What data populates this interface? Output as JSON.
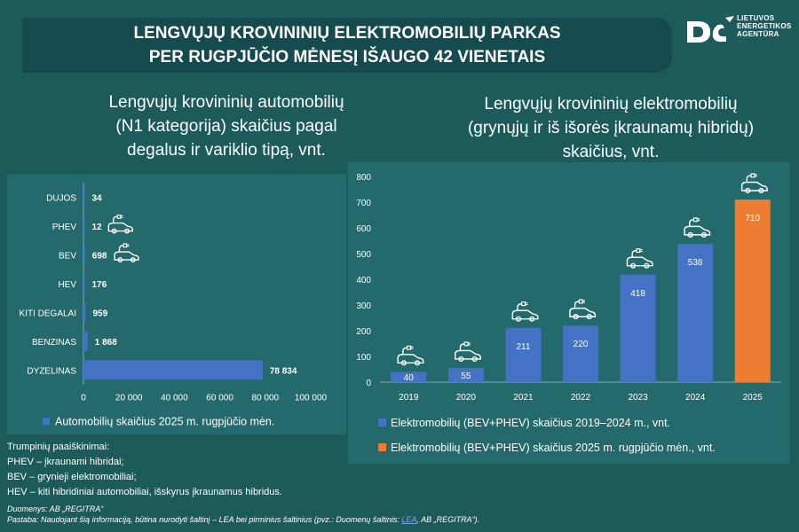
{
  "header": {
    "line1": "LENGVŲJŲ KROVININIŲ ELEKTROMOBILIŲ PARKAS",
    "line2": "PER RUGPJŪČIO MĖNESĮ IŠAUGO 42 VIENETAIS"
  },
  "logo": {
    "line1": "LIETUVOS",
    "line2": "ENERGETIKOS",
    "line3": "AGENTŪRA",
    "icon": "lea-logo-icon"
  },
  "left_title": {
    "line1": "Lengvųjų krovininių automobilių",
    "line2": "(N1 kategorija) skaičius pagal",
    "line3": "degalus ir variklio tipą, vnt."
  },
  "right_title": {
    "line1": "Lengvųjų krovininių elektromobilių",
    "line2": "(grynųjų ir iš išorės įkraunamų hibridų)",
    "line3": "skaičius, vnt."
  },
  "colors": {
    "background": "#1d5b5b",
    "panel": "#24696b",
    "bar_blue": "#4472c4",
    "bar_orange": "#ed7d31"
  },
  "chart_data": [
    {
      "type": "bar",
      "orientation": "horizontal",
      "categories": [
        "DUJOS",
        "PHEV",
        "BEV",
        "HEV",
        "KITI DEGALAI",
        "BENZINAS",
        "DYZELINAS"
      ],
      "values": [
        34,
        12,
        698,
        176,
        959,
        1868,
        78834
      ],
      "value_labels": [
        "34",
        "12",
        "698",
        "176",
        "959",
        "1 868",
        "78 834"
      ],
      "ev_icon_categories": [
        "PHEV",
        "BEV"
      ],
      "xlim": [
        0,
        100000
      ],
      "x_ticks": [
        0,
        20000,
        40000,
        60000,
        80000,
        100000
      ],
      "x_tick_labels": [
        "0",
        "20 000",
        "40 000",
        "60 000",
        "80 000",
        "100 000"
      ],
      "legend": [
        "Automobilių skaičius 2025 m. rugpjūčio mėn."
      ],
      "legend_position": "bottom",
      "grid": false,
      "bar_color": "#4472c4"
    },
    {
      "type": "bar",
      "orientation": "vertical",
      "categories": [
        "2019",
        "2020",
        "2021",
        "2022",
        "2023",
        "2024",
        "2025"
      ],
      "series": [
        {
          "name": "Elektromobilių (BEV+PHEV) skaičius 2019–2024 m., vnt.",
          "values": [
            40,
            55,
            211,
            220,
            418,
            538,
            null
          ],
          "color": "#4472c4"
        },
        {
          "name": "Elektromobilių (BEV+PHEV) skaičius 2025 m. rugpjūčio mėn., vnt.",
          "values": [
            null,
            null,
            null,
            null,
            null,
            null,
            710
          ],
          "color": "#ed7d31"
        }
      ],
      "ylim": [
        0,
        800
      ],
      "y_ticks": [
        0,
        100,
        200,
        300,
        400,
        500,
        600,
        700,
        800
      ],
      "legend_position": "bottom",
      "grid": false
    }
  ],
  "notes": {
    "heading": "Trumpinių paaiškinimai:",
    "phev": "PHEV – įkraunami hibridai;",
    "bev": "BEV – grynieji elektromobiliai;",
    "hev": "HEV – kiti hibridiniai automobiliai, išskyrus įkraunamus hibridus."
  },
  "source": {
    "data": "Duomenys: AB „REGITRA“",
    "note_prefix": "Pastaba: Naudojant šią informaciją, būtina nurodyti šaltinį – LEA bei pirminius šaltinius (pvz.: Duomenų šaltinis: ",
    "link": "LEA",
    "note_suffix": ", AB „REGITRA“)."
  }
}
